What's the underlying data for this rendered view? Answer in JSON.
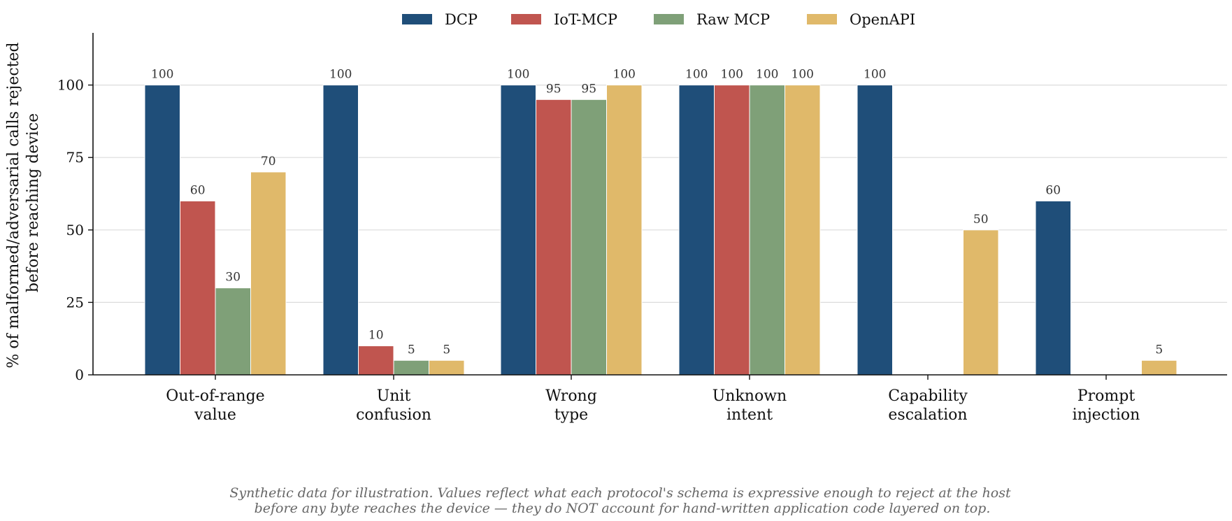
{
  "chart_data": {
    "type": "bar",
    "categories": [
      [
        "Out-of-range",
        "value"
      ],
      [
        "Unit",
        "confusion"
      ],
      [
        "Wrong",
        "type"
      ],
      [
        "Unknown",
        "intent"
      ],
      [
        "Capability",
        "escalation"
      ],
      [
        "Prompt",
        "injection"
      ]
    ],
    "series": [
      {
        "name": "DCP",
        "color": "#1f4e79",
        "values": [
          100,
          100,
          100,
          100,
          100,
          60
        ]
      },
      {
        "name": "IoT-MCP",
        "color": "#c0554f",
        "values": [
          60,
          10,
          95,
          100,
          0,
          0
        ]
      },
      {
        "name": "Raw MCP",
        "color": "#7fa078",
        "values": [
          30,
          5,
          95,
          100,
          0,
          0
        ]
      },
      {
        "name": "OpenAPI",
        "color": "#e0b96a",
        "values": [
          70,
          5,
          100,
          100,
          50,
          5
        ]
      }
    ],
    "ylabel": [
      "% of malformed/adversarial calls rejected",
      "before reaching device"
    ],
    "xlabel": "",
    "title": "",
    "ylim": [
      0,
      118
    ],
    "yticks": [
      0,
      25,
      50,
      75,
      100
    ],
    "grid": "y",
    "legend_position": "top",
    "note": [
      "Synthetic data for illustration. Values reflect what each protocol's schema is expressive enough to reject at the host",
      "before any byte reaches the device — they do NOT account for hand-written application code layered on top."
    ]
  }
}
